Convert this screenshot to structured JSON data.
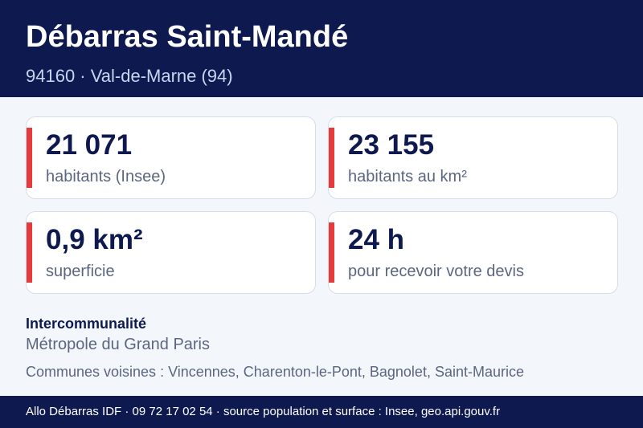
{
  "header": {
    "title": "Débarras Saint-Mandé",
    "subtitle": "94160 · Val-de-Marne (94)"
  },
  "stats": [
    {
      "value": "21 071",
      "label": "habitants (Insee)"
    },
    {
      "value": "23 155",
      "label": "habitants au km²"
    },
    {
      "value": "0,9 km²",
      "label": "superficie"
    },
    {
      "value": "24 h",
      "label": "pour recevoir votre devis"
    }
  ],
  "intercommunalite": {
    "title": "Intercommunalité",
    "value": "Métropole du Grand Paris",
    "neighbors": "Communes voisines : Vincennes, Charenton-le-Pont, Bagnolet, Saint-Maurice"
  },
  "footer": {
    "text": "Allo Débarras IDF · 09 72 17 02 54 · source population et surface : Insee, geo.api.gouv.fr"
  },
  "colors": {
    "navy": "#0e1a4f",
    "accent_red": "#e53b3b",
    "background": "#f3f6fb"
  }
}
